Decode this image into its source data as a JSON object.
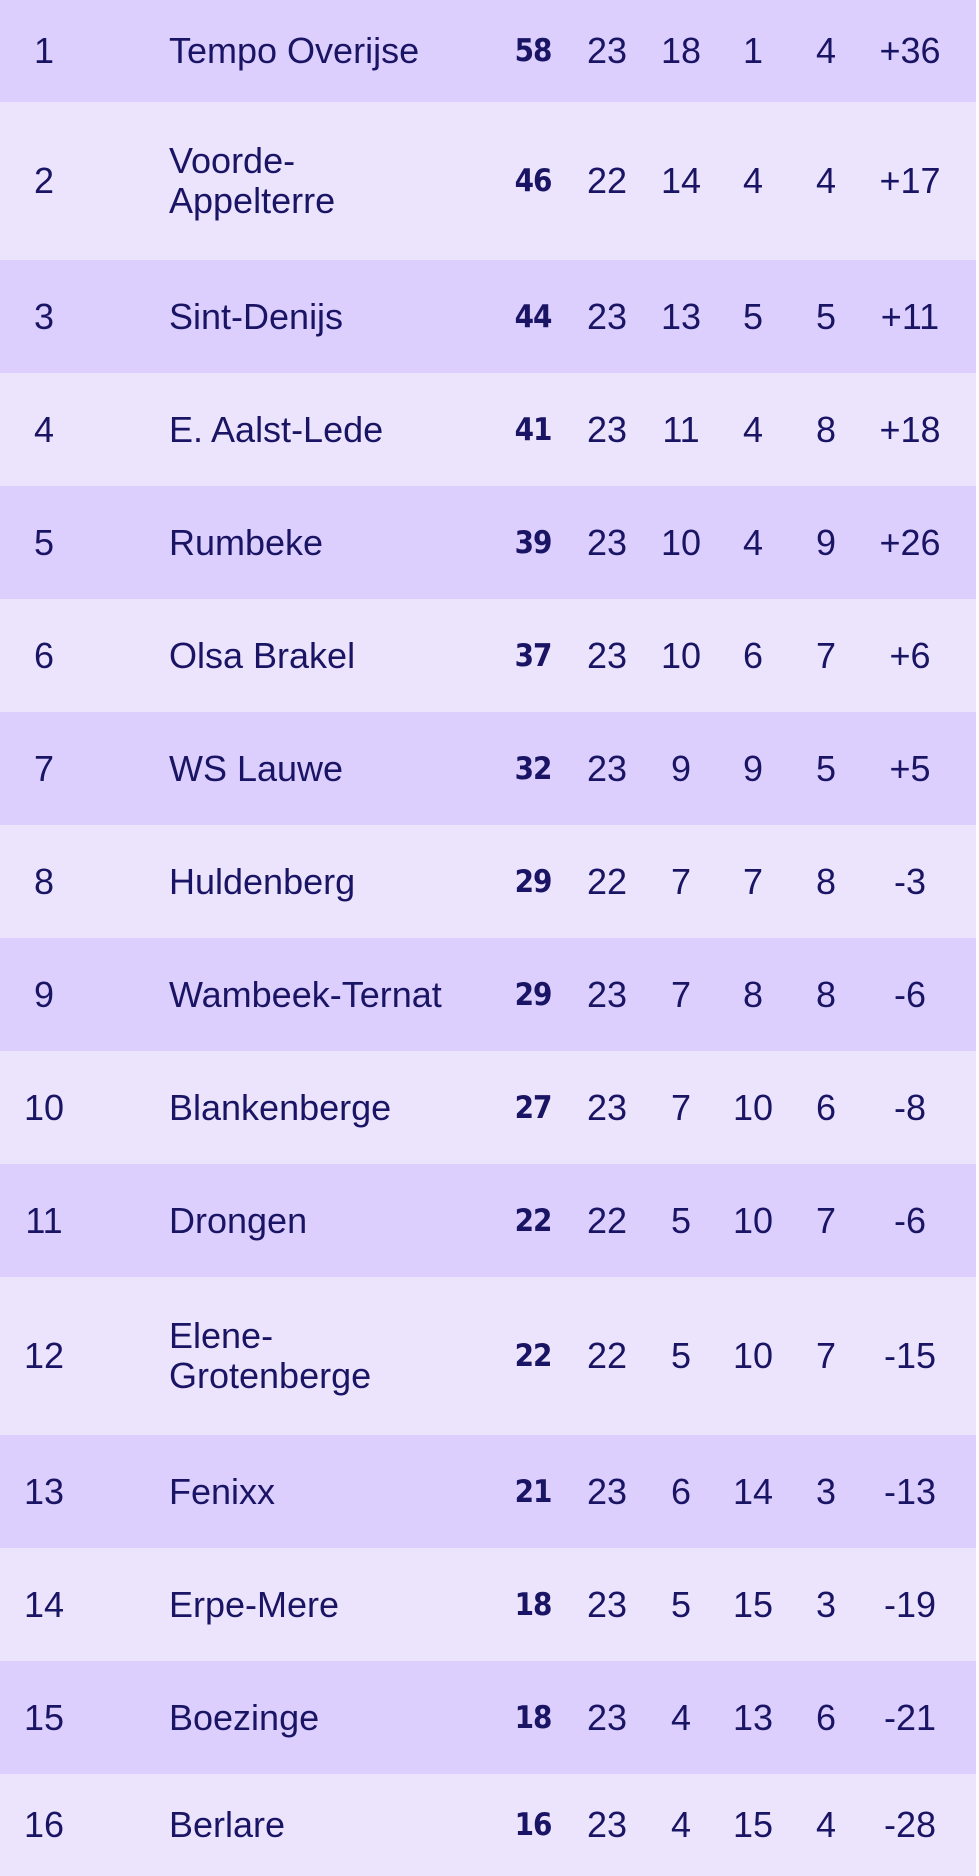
{
  "standings": [
    {
      "pos": "1",
      "team": "Tempo Overijse",
      "pts": "58",
      "gp": "23",
      "w": "18",
      "d": "1",
      "l": "4",
      "gd": "+36"
    },
    {
      "pos": "2",
      "team": "Voorde-Appelterre",
      "pts": "46",
      "gp": "22",
      "w": "14",
      "d": "4",
      "l": "4",
      "gd": "+17"
    },
    {
      "pos": "3",
      "team": "Sint-Denijs",
      "pts": "44",
      "gp": "23",
      "w": "13",
      "d": "5",
      "l": "5",
      "gd": "+11"
    },
    {
      "pos": "4",
      "team": "E. Aalst-Lede",
      "pts": "41",
      "gp": "23",
      "w": "11",
      "d": "4",
      "l": "8",
      "gd": "+18"
    },
    {
      "pos": "5",
      "team": "Rumbeke",
      "pts": "39",
      "gp": "23",
      "w": "10",
      "d": "4",
      "l": "9",
      "gd": "+26"
    },
    {
      "pos": "6",
      "team": "Olsa Brakel",
      "pts": "37",
      "gp": "23",
      "w": "10",
      "d": "6",
      "l": "7",
      "gd": "+6"
    },
    {
      "pos": "7",
      "team": "WS Lauwe",
      "pts": "32",
      "gp": "23",
      "w": "9",
      "d": "9",
      "l": "5",
      "gd": "+5"
    },
    {
      "pos": "8",
      "team": "Huldenberg",
      "pts": "29",
      "gp": "22",
      "w": "7",
      "d": "7",
      "l": "8",
      "gd": "-3"
    },
    {
      "pos": "9",
      "team": "Wambeek-Ternat",
      "pts": "29",
      "gp": "23",
      "w": "7",
      "d": "8",
      "l": "8",
      "gd": "-6"
    },
    {
      "pos": "10",
      "team": "Blankenberge",
      "pts": "27",
      "gp": "23",
      "w": "7",
      "d": "10",
      "l": "6",
      "gd": "-8"
    },
    {
      "pos": "11",
      "team": "Drongen",
      "pts": "22",
      "gp": "22",
      "w": "5",
      "d": "10",
      "l": "7",
      "gd": "-6"
    },
    {
      "pos": "12",
      "team": "Elene-Grotenberge",
      "pts": "22",
      "gp": "22",
      "w": "5",
      "d": "10",
      "l": "7",
      "gd": "-15"
    },
    {
      "pos": "13",
      "team": "Fenixx",
      "pts": "21",
      "gp": "23",
      "w": "6",
      "d": "14",
      "l": "3",
      "gd": "-13"
    },
    {
      "pos": "14",
      "team": "Erpe-Mere",
      "pts": "18",
      "gp": "23",
      "w": "5",
      "d": "15",
      "l": "3",
      "gd": "-19"
    },
    {
      "pos": "15",
      "team": "Boezinge",
      "pts": "18",
      "gp": "23",
      "w": "4",
      "d": "13",
      "l": "6",
      "gd": "-21"
    },
    {
      "pos": "16",
      "team": "Berlare",
      "pts": "16",
      "gp": "23",
      "w": "4",
      "d": "15",
      "l": "4",
      "gd": "-28"
    }
  ],
  "colors": {
    "row_dark": "#dccffd",
    "row_light": "#ece4fd",
    "text": "#1a1464"
  }
}
